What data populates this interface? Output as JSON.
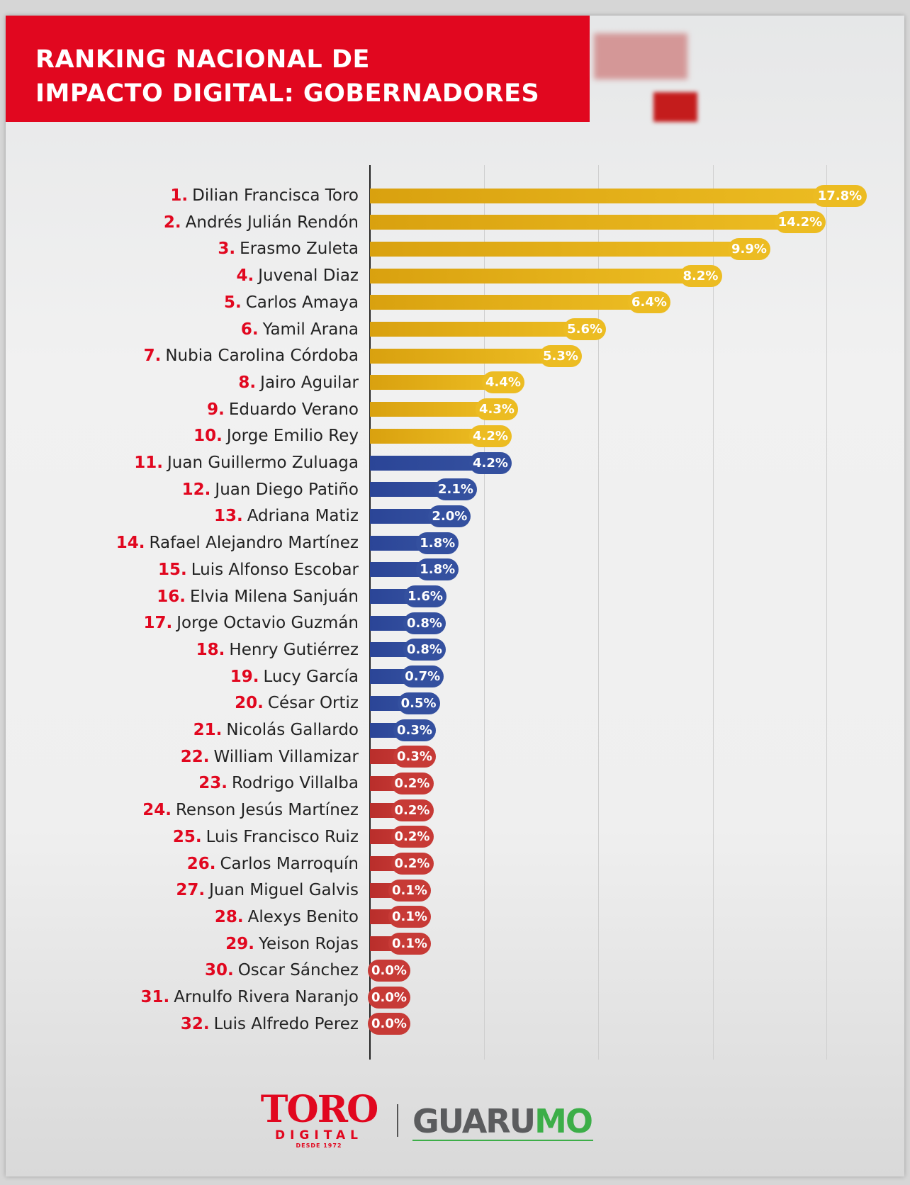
{
  "header": {
    "title_line1": "RANKING NACIONAL DE",
    "title_line2": "IMPACTO DIGITAL: GOBERNADORES"
  },
  "footer": {
    "toro_logo": "TORO",
    "toro_sub": "DIGITAL",
    "toro_since": "DESDE 1972",
    "guarumo_a": "GUARU",
    "guarumo_b": "MO"
  },
  "colors": {
    "gold": "#d9a10f",
    "gold_light": "#ecbc22",
    "blue": "#2b4597",
    "blue_light": "#34509f",
    "red": "#b92e2b",
    "red_light": "#c73a36",
    "brand_red": "#e1071f"
  },
  "chart_data": {
    "type": "bar",
    "orientation": "horizontal",
    "title": "RANKING NACIONAL DE IMPACTO DIGITAL: GOBERNADORES",
    "xlabel": "",
    "ylabel": "",
    "grid": true,
    "categories": [
      "Dilian Francisca Toro",
      "Andrés Julián Rendón",
      "Erasmo Zuleta",
      "Juvenal Diaz",
      "Carlos Amaya",
      "Yamil Arana",
      "Nubia Carolina Córdoba",
      "Jairo Aguilar",
      "Eduardo Verano",
      "Jorge Emilio Rey",
      "Juan Guillermo Zuluaga",
      "Juan Diego Patiño",
      "Adriana Matiz",
      "Rafael Alejandro Martínez",
      "Luis Alfonso Escobar",
      "Elvia Milena Sanjuán",
      "Jorge Octavio Guzmán",
      "Henry Gutiérrez",
      "Lucy García",
      "César Ortiz",
      "Nicolás Gallardo",
      "William Villamizar",
      "Rodrigo Villalba",
      "Renson Jesús Martínez",
      "Luis Francisco Ruiz",
      "Carlos Marroquín",
      "Juan Miguel Galvis",
      "Alexys Benito",
      "Yeison Rojas",
      "Oscar Sánchez",
      "Arnulfo Rivera Naranjo",
      "Luis Alfredo Perez"
    ],
    "ranks": [
      "1.",
      "2.",
      "3.",
      "4.",
      "5.",
      "6.",
      "7.",
      "8.",
      "9.",
      "10.",
      "11.",
      "12.",
      "13.",
      "14.",
      "15.",
      "16.",
      "17.",
      "18.",
      "19.",
      "20.",
      "21.",
      "22.",
      "23.",
      "24.",
      "25.",
      "26.",
      "27.",
      "28.",
      "29.",
      "30.",
      "31.",
      "32."
    ],
    "values": [
      17.8,
      14.2,
      9.9,
      8.2,
      6.4,
      5.6,
      5.3,
      4.4,
      4.3,
      4.2,
      4.2,
      2.1,
      2.0,
      1.8,
      1.8,
      1.6,
      0.8,
      0.8,
      0.7,
      0.5,
      0.3,
      0.3,
      0.2,
      0.2,
      0.2,
      0.2,
      0.1,
      0.1,
      0.1,
      0.0,
      0.0,
      0.0
    ],
    "value_labels": [
      "17.8%",
      "14.2%",
      "9.9%",
      "8.2%",
      "6.4%",
      "5.6%",
      "5.3%",
      "4.4%",
      "4.3%",
      "4.2%",
      "4.2%",
      "2.1%",
      "2.0%",
      "1.8%",
      "1.8%",
      "1.6%",
      "0.8%",
      "0.8%",
      "0.7%",
      "0.5%",
      "0.3%",
      "0.3%",
      "0.2%",
      "0.2%",
      "0.2%",
      "0.2%",
      "0.1%",
      "0.1%",
      "0.1%",
      "0.0%",
      "0.0%",
      "0.0%"
    ],
    "groups": [
      "gold",
      "gold",
      "gold",
      "gold",
      "gold",
      "gold",
      "gold",
      "gold",
      "gold",
      "gold",
      "blue",
      "blue",
      "blue",
      "blue",
      "blue",
      "blue",
      "blue",
      "blue",
      "blue",
      "blue",
      "blue",
      "red",
      "red",
      "red",
      "red",
      "red",
      "red",
      "red",
      "red",
      "red",
      "red",
      "red"
    ]
  }
}
